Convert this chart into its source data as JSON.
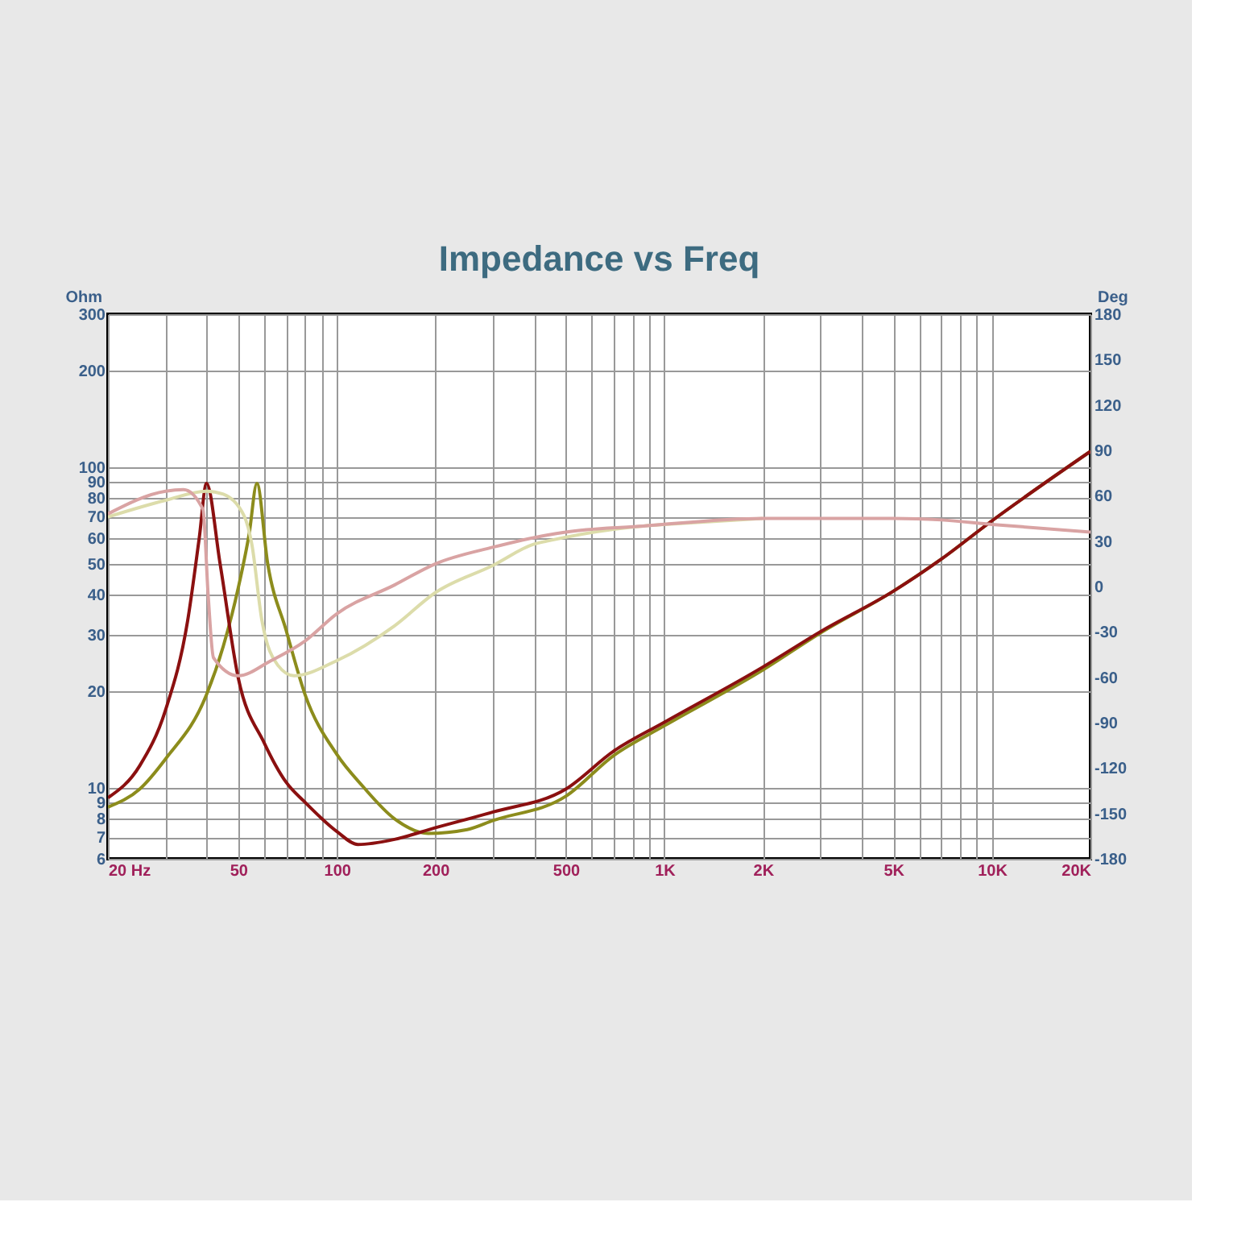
{
  "chart_data": {
    "type": "line",
    "title": "Impedance vs Freq",
    "ylabel": "Ohm",
    "y2label": "Deg",
    "log": "xy",
    "grid": true,
    "line_style": "solid",
    "marker": "none",
    "xlim": [
      20,
      20000
    ],
    "xticks": [
      {
        "value": 20,
        "label": "20  Hz"
      },
      {
        "value": 30,
        "label": null
      },
      {
        "value": 40,
        "label": null
      },
      50,
      {
        "value": 60,
        "label": null
      },
      {
        "value": 70,
        "label": null
      },
      {
        "value": 80,
        "label": null
      },
      {
        "value": 90,
        "label": null
      },
      100,
      200,
      {
        "value": 300,
        "label": null
      },
      {
        "value": 400,
        "label": null
      },
      500,
      {
        "value": 600,
        "label": null
      },
      {
        "value": 700,
        "label": null
      },
      {
        "value": 800,
        "label": null
      },
      {
        "value": 900,
        "label": null
      },
      {
        "value": 1000,
        "label": "1K"
      },
      {
        "value": 2000,
        "label": "2K"
      },
      {
        "value": 3000,
        "label": null
      },
      {
        "value": 4000,
        "label": null
      },
      {
        "value": 5000,
        "label": "5K"
      },
      {
        "value": 6000,
        "label": null
      },
      {
        "value": 7000,
        "label": null
      },
      {
        "value": 8000,
        "label": null
      },
      {
        "value": 9000,
        "label": null
      },
      {
        "value": 10000,
        "label": "10K"
      },
      {
        "value": 20000,
        "label": "20K"
      }
    ],
    "ylim": [
      6,
      300
    ],
    "yticks": [
      6,
      7,
      8,
      9,
      10,
      20,
      30,
      40,
      50,
      60,
      70,
      80,
      90,
      100,
      200,
      300
    ],
    "y2lim": [
      -180,
      180
    ],
    "y2ticks": [
      -180,
      -150,
      -120,
      -90,
      -60,
      -30,
      0,
      30,
      60,
      90,
      120,
      150,
      180
    ],
    "series": [
      {
        "color": "#dcdcaa",
        "axis": "y2",
        "x": [
          20,
          30,
          40,
          45,
          52,
          55,
          59,
          66,
          74,
          100,
          150,
          200,
          300,
          400,
          438,
          863,
          1000,
          2000
        ],
        "values": [
          46,
          57,
          63,
          61,
          47,
          28,
          -22,
          -52,
          -59,
          -49,
          -26,
          -4,
          14,
          28,
          30,
          40,
          41,
          45
        ]
      },
      {
        "color": "#d9a3a3",
        "axis": "y2",
        "x": [
          20,
          30,
          34,
          39,
          40.5,
          42,
          50,
          63,
          80,
          100,
          150,
          200,
          300,
          438,
          500,
          863,
          2000,
          5000,
          7000,
          10000,
          20000
        ],
        "values": [
          48,
          63,
          64,
          51,
          -7,
          -47,
          -59,
          -49,
          -36,
          -18,
          1,
          15,
          26,
          34,
          36,
          40,
          45,
          45,
          44,
          41,
          36
        ]
      },
      {
        "color": "#8c8c1c",
        "x": [
          20,
          25,
          30,
          40,
          45,
          50,
          54,
          57,
          61.5,
          70,
          80,
          100,
          120,
          150,
          190,
          250,
          300,
          500,
          700,
          1000,
          2000,
          3000,
          5000,
          7000,
          10000,
          20000
        ],
        "values": [
          8.7,
          9.9,
          12.3,
          19.5,
          27.6,
          42,
          62,
          89,
          50,
          31,
          19.5,
          12.7,
          10.1,
          8,
          7.2,
          7.4,
          7.9,
          9.4,
          12.6,
          15.6,
          23.3,
          30.4,
          41,
          51.6,
          68,
          112
        ]
      },
      {
        "color": "#8b1010",
        "x": [
          20,
          25,
          30,
          35,
          38,
          40,
          44,
          50,
          60,
          70,
          80,
          100,
          116,
          150,
          200,
          300,
          500,
          700,
          1000,
          2000,
          3000,
          5000,
          7000,
          10000,
          20000
        ],
        "values": [
          9.3,
          11.7,
          17.5,
          33,
          60,
          89,
          50,
          22,
          13.8,
          10.4,
          9,
          7.3,
          6.65,
          6.9,
          7.5,
          8.4,
          9.9,
          13,
          16,
          23.8,
          30.7,
          41,
          51.6,
          68,
          112
        ]
      }
    ]
  }
}
